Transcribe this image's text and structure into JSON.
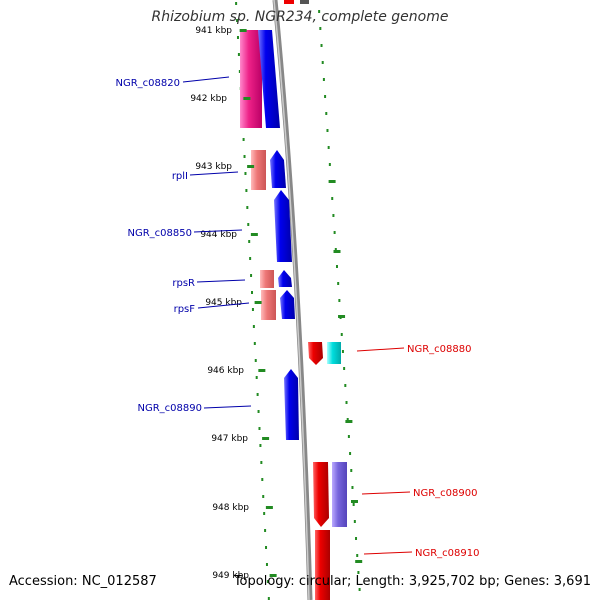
{
  "title": "Rhizobium sp. NGR234, complete genome",
  "footer": {
    "accession_label": "Accession:",
    "accession": "NC_012587",
    "topology_label": "Topology:",
    "topology": "circular",
    "length_label": "Length:",
    "length": "3,925,702 bp",
    "genes_label": "Genes:",
    "genes": "3,691"
  },
  "ticks": [
    "941 kbp",
    "942 kbp",
    "943 kbp",
    "944 kbp",
    "945 kbp",
    "946 kbp",
    "947 kbp",
    "948 kbp",
    "949 kbp"
  ],
  "gene_labels": {
    "left": [
      "NGR_c08820",
      "rplI",
      "NGR_c08850",
      "rpsR",
      "rpsF",
      "NGR_c08890"
    ],
    "right": [
      "NGR_c08880",
      "NGR_c08900",
      "NGR_c08910"
    ]
  },
  "colors": {
    "left_label": "#0000aa",
    "right_label": "#dd0000",
    "tick": "#228b22",
    "backbone": "#888888",
    "blue_gene": "#0000ee",
    "red_gene": "#ee0000",
    "pink_gene": "#ee2288",
    "salmon_gene": "#ee7777",
    "cyan_gene": "#00dddd",
    "purple_gene": "#7766dd"
  }
}
